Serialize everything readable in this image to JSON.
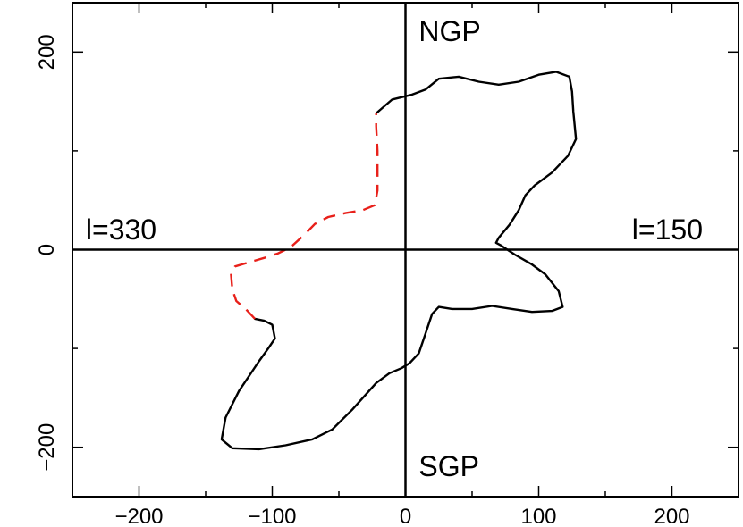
{
  "chart_data": {
    "type": "line",
    "title": "",
    "xlabel": "",
    "ylabel": "",
    "xlim": [
      -250,
      250
    ],
    "ylim": [
      -250,
      250
    ],
    "xticks": [
      -200,
      -100,
      0,
      100,
      200
    ],
    "yticks": [
      -200,
      0,
      200
    ],
    "xtick_labels": [
      "−200",
      "−100",
      "0",
      "100",
      "200"
    ],
    "ytick_labels": [
      "−200",
      "0",
      "200"
    ],
    "grid": false,
    "axes_lines": [
      {
        "orientation": "vertical",
        "value": 0
      },
      {
        "orientation": "horizontal",
        "value": 0
      }
    ],
    "annotations": [
      {
        "text": "NGP",
        "x": 10,
        "y": 220
      },
      {
        "text": "SGP",
        "x": 10,
        "y": -220
      },
      {
        "text": "l=330",
        "x": -240,
        "y": 10
      },
      {
        "text": "l=150",
        "x": 170,
        "y": 10
      }
    ],
    "series": [
      {
        "style": "solid",
        "color": "#000000",
        "points": [
          [
            -22,
            138
          ],
          [
            -10,
            152
          ],
          [
            5,
            157
          ],
          [
            15,
            162
          ],
          [
            25,
            173
          ],
          [
            40,
            175
          ],
          [
            55,
            170
          ],
          [
            70,
            167
          ],
          [
            85,
            170
          ],
          [
            100,
            177
          ],
          [
            113,
            180
          ],
          [
            123,
            175
          ],
          [
            125,
            160
          ],
          [
            126,
            140
          ],
          [
            128,
            112
          ],
          [
            122,
            95
          ],
          [
            110,
            78
          ],
          [
            97,
            65
          ],
          [
            90,
            55
          ],
          [
            85,
            40
          ],
          [
            78,
            25
          ],
          [
            70,
            12
          ],
          [
            68,
            7
          ],
          [
            72,
            4
          ],
          [
            82,
            -5
          ],
          [
            95,
            -15
          ],
          [
            105,
            -25
          ],
          [
            115,
            -42
          ],
          [
            118,
            -58
          ],
          [
            110,
            -62
          ],
          [
            95,
            -63
          ],
          [
            80,
            -60
          ],
          [
            65,
            -57
          ],
          [
            50,
            -60
          ],
          [
            35,
            -60
          ],
          [
            25,
            -58
          ],
          [
            20,
            -65
          ],
          [
            15,
            -85
          ],
          [
            10,
            -105
          ],
          [
            3,
            -115
          ],
          [
            -3,
            -120
          ],
          [
            -12,
            -125
          ],
          [
            -22,
            -135
          ],
          [
            -40,
            -162
          ],
          [
            -55,
            -182
          ],
          [
            -70,
            -192
          ],
          [
            -90,
            -198
          ],
          [
            -110,
            -202
          ],
          [
            -130,
            -201
          ],
          [
            -138,
            -192
          ],
          [
            -135,
            -170
          ],
          [
            -125,
            -143
          ],
          [
            -117,
            -127
          ],
          [
            -110,
            -113
          ],
          [
            -103,
            -100
          ],
          [
            -98,
            -90
          ],
          [
            -100,
            -76
          ],
          [
            -106,
            -72
          ],
          [
            -113,
            -70
          ]
        ]
      },
      {
        "style": "dashed",
        "color": "#e8201a",
        "points": [
          [
            -113,
            -70
          ],
          [
            -120,
            -60
          ],
          [
            -127,
            -52
          ],
          [
            -130,
            -40
          ],
          [
            -131,
            -24
          ],
          [
            -128,
            -17
          ],
          [
            -118,
            -13
          ],
          [
            -105,
            -8
          ],
          [
            -96,
            -4
          ],
          [
            -90,
            0
          ],
          [
            -85,
            4
          ],
          [
            -76,
            15
          ],
          [
            -68,
            26
          ],
          [
            -58,
            33
          ],
          [
            -45,
            37
          ],
          [
            -32,
            40
          ],
          [
            -23,
            45
          ],
          [
            -21,
            60
          ],
          [
            -21,
            78
          ],
          [
            -21,
            100
          ],
          [
            -22,
            125
          ],
          [
            -22,
            138
          ]
        ]
      }
    ]
  }
}
